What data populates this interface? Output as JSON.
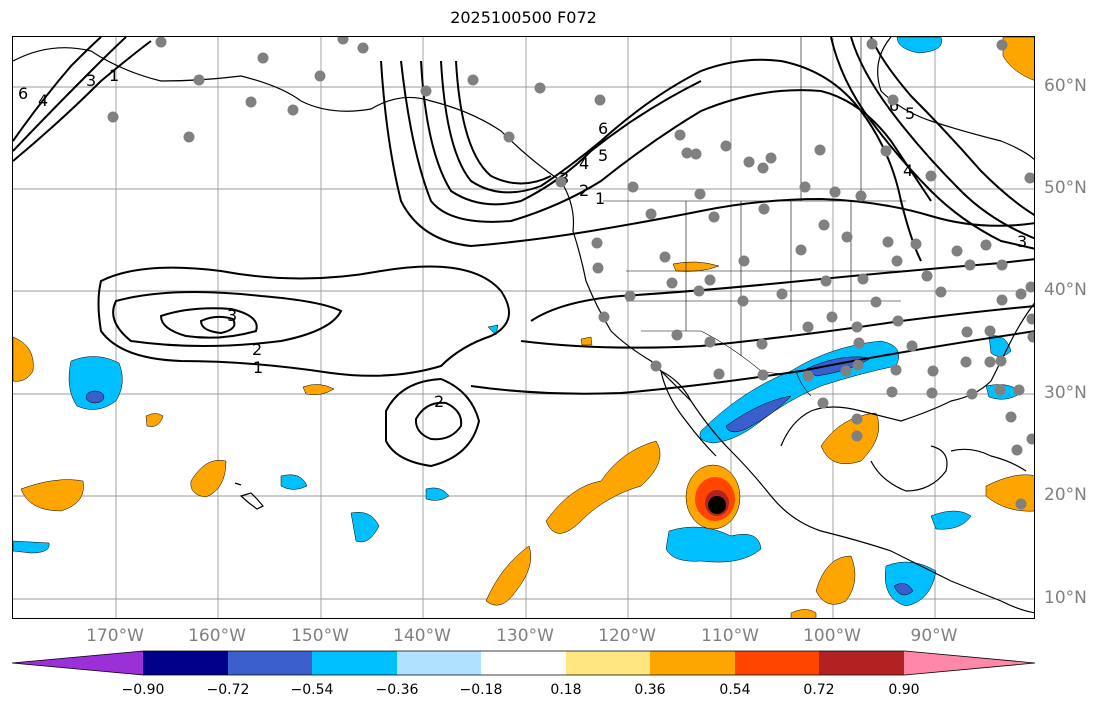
{
  "title": "2025100500 F072",
  "lat_labels": [
    "60°N",
    "50°N",
    "40°N",
    "30°N",
    "20°N",
    "10°N"
  ],
  "lon_labels": [
    "170°W",
    "160°W",
    "150°W",
    "140°W",
    "130°W",
    "120°W",
    "110°W",
    "100°W",
    "90°W"
  ],
  "contour_labels": [
    "6",
    "4",
    "3",
    "1",
    "3",
    "2",
    "1",
    "2",
    "6",
    "5",
    "4",
    "3",
    "2",
    "1",
    "6",
    "5",
    "4",
    "3"
  ],
  "colorbar": {
    "ticks": [
      "−0.90",
      "−0.72",
      "−0.54",
      "−0.36",
      "−0.18",
      "0.18",
      "0.36",
      "0.54",
      "0.72",
      "0.90"
    ],
    "colors": [
      "#9b30d9",
      "#00008b",
      "#3a5fcd",
      "#00bfff",
      "#b0e2ff",
      "#ffffff",
      "#ffe680",
      "#ffa500",
      "#ff4500",
      "#b22222",
      "#ff88a8"
    ]
  },
  "marker": {
    "label": "storm center",
    "color": "#000000"
  },
  "stations_color": "#808080"
}
